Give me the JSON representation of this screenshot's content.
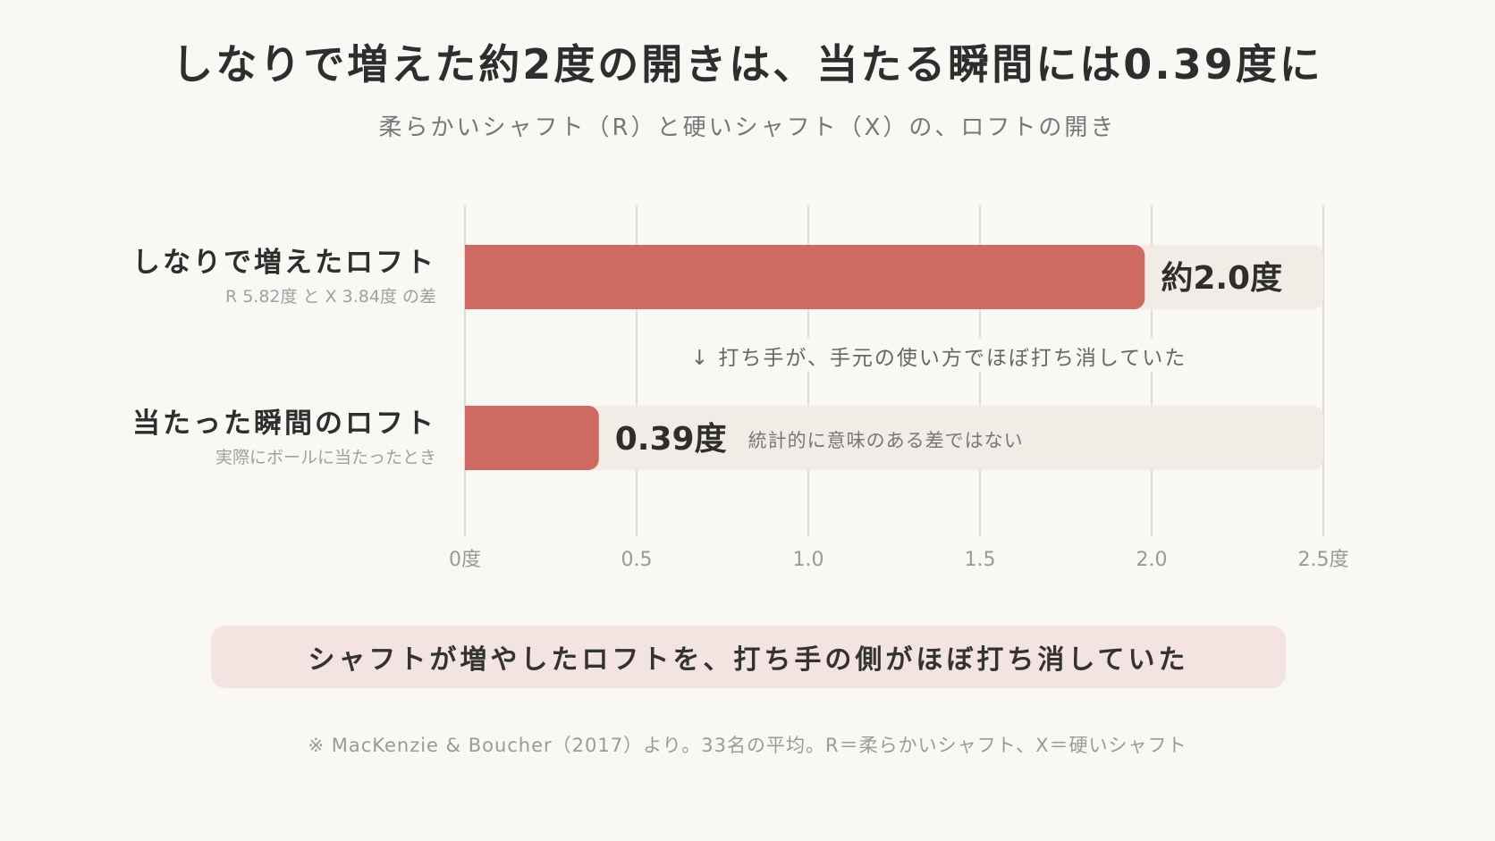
{
  "title": "しなりで増えた約2度の開きは、当たる瞬間には0.39度に",
  "subtitle": "柔らかいシャフト（R）と硬いシャフト（X）の、ロフトの開き",
  "colors": {
    "bar": "#cf6a62",
    "track": "#f1ece5",
    "grid": "#e2ddd2",
    "background": "#faf8f4"
  },
  "chart_data": {
    "type": "bar",
    "orientation": "horizontal",
    "xlim": [
      0,
      2.5
    ],
    "x_ticks": [
      "0度",
      "0.5",
      "1.0",
      "1.5",
      "2.0",
      "2.5度"
    ],
    "x_tick_values": [
      0,
      0.5,
      1.0,
      1.5,
      2.0,
      2.5
    ],
    "grid": true,
    "bars": [
      {
        "label": "しなりで増えたロフト",
        "sublabel": "R 5.82度 と X 3.84度 の差",
        "value": 1.98,
        "value_label": "約2.0度",
        "note": ""
      },
      {
        "label": "当たった瞬間のロフト",
        "sublabel": "実際にボールに当たったとき",
        "value": 0.39,
        "value_label": "0.39度",
        "note": "統計的に意味のある差ではない"
      }
    ],
    "annotation": "↓ 打ち手が、手元の使い方でほぼ打ち消していた"
  },
  "callout": "シャフトが増やしたロフトを、打ち手の側がほぼ打ち消していた",
  "footnote": "※ MacKenzie & Boucher（2017）より。33名の平均。R＝柔らかいシャフト、X＝硬いシャフト"
}
